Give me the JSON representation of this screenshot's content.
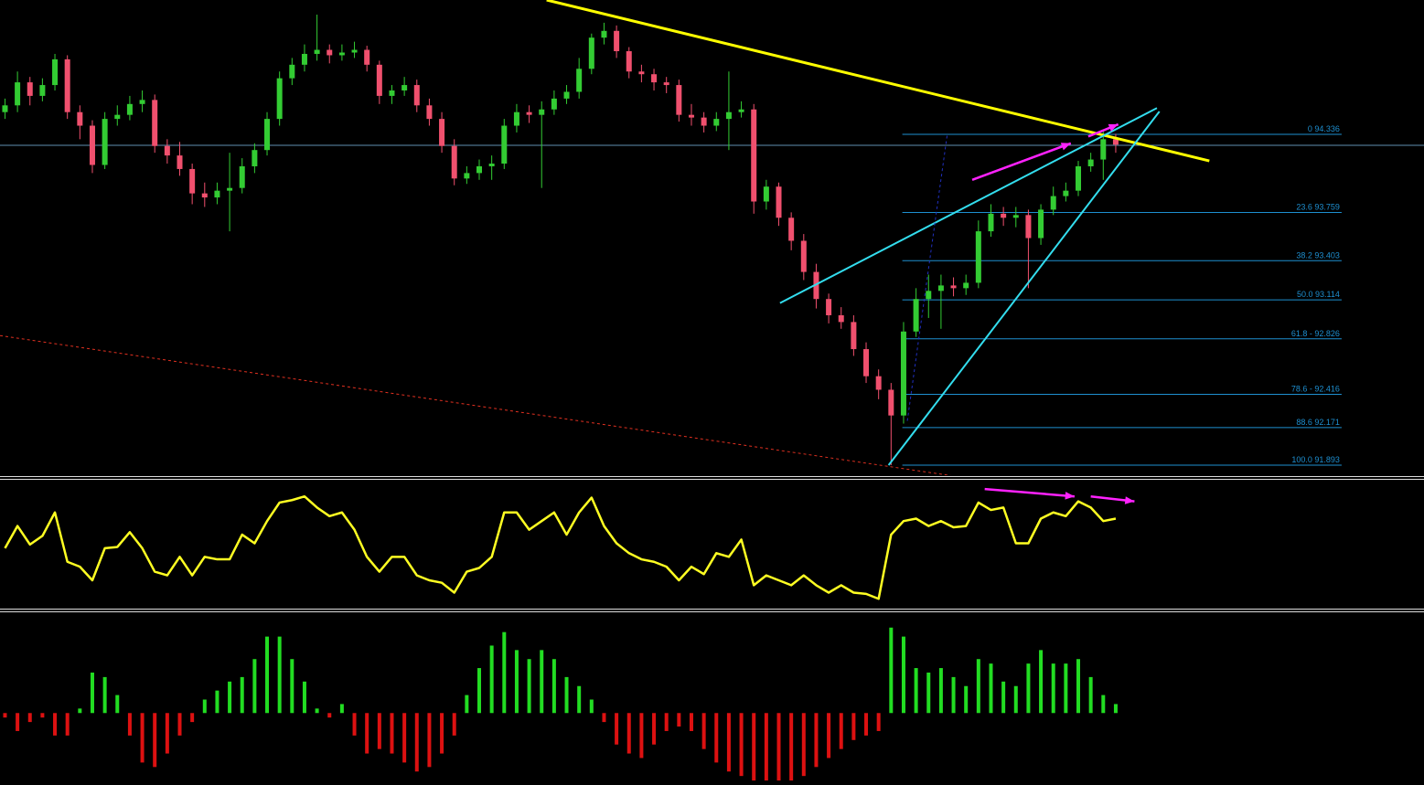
{
  "chart_data": [
    {
      "type": "candlestick",
      "xlim": [
        -0.4,
        113.7
      ],
      "ylim": [
        91.819,
        95.328
      ],
      "up_color": "#33cc33",
      "down_color": "#f0506e",
      "ohlc": [
        [
          94.5,
          94.6,
          94.45,
          94.55
        ],
        [
          94.55,
          94.8,
          94.5,
          94.72
        ],
        [
          94.72,
          94.76,
          94.55,
          94.62
        ],
        [
          94.62,
          94.75,
          94.58,
          94.7
        ],
        [
          94.7,
          94.93,
          94.66,
          94.89
        ],
        [
          94.89,
          94.92,
          94.45,
          94.5
        ],
        [
          94.5,
          94.55,
          94.3,
          94.4
        ],
        [
          94.4,
          94.44,
          94.05,
          94.11
        ],
        [
          94.11,
          94.5,
          94.08,
          94.45
        ],
        [
          94.45,
          94.55,
          94.4,
          94.48
        ],
        [
          94.48,
          94.62,
          94.44,
          94.56
        ],
        [
          94.56,
          94.66,
          94.5,
          94.59
        ],
        [
          94.59,
          94.63,
          94.2,
          94.25
        ],
        [
          94.25,
          94.3,
          94.12,
          94.18
        ],
        [
          94.18,
          94.28,
          94.03,
          94.08
        ],
        [
          94.08,
          94.12,
          93.82,
          93.9
        ],
        [
          93.9,
          93.98,
          93.8,
          93.87
        ],
        [
          93.87,
          93.98,
          93.82,
          93.92
        ],
        [
          93.92,
          94.2,
          93.62,
          93.94
        ],
        [
          93.94,
          94.16,
          93.9,
          94.1
        ],
        [
          94.1,
          94.27,
          94.05,
          94.22
        ],
        [
          94.22,
          94.5,
          94.18,
          94.45
        ],
        [
          94.45,
          94.8,
          94.4,
          94.75
        ],
        [
          94.75,
          94.9,
          94.7,
          94.85
        ],
        [
          94.85,
          95.0,
          94.8,
          94.93
        ],
        [
          94.93,
          95.22,
          94.88,
          94.96
        ],
        [
          94.96,
          95.0,
          94.86,
          94.92
        ],
        [
          94.92,
          95.0,
          94.88,
          94.94
        ],
        [
          94.94,
          95.02,
          94.9,
          94.96
        ],
        [
          94.96,
          94.99,
          94.8,
          94.85
        ],
        [
          94.85,
          94.88,
          94.56,
          94.62
        ],
        [
          94.62,
          94.7,
          94.56,
          94.66
        ],
        [
          94.66,
          94.76,
          94.62,
          94.7
        ],
        [
          94.7,
          94.74,
          94.5,
          94.55
        ],
        [
          94.55,
          94.6,
          94.4,
          94.45
        ],
        [
          94.45,
          94.5,
          94.2,
          94.25
        ],
        [
          94.25,
          94.3,
          93.96,
          94.01
        ],
        [
          94.01,
          94.1,
          93.97,
          94.05
        ],
        [
          94.05,
          94.15,
          94.0,
          94.1
        ],
        [
          94.1,
          94.18,
          94.0,
          94.12
        ],
        [
          94.12,
          94.45,
          94.08,
          94.4
        ],
        [
          94.4,
          94.56,
          94.35,
          94.5
        ],
        [
          94.5,
          94.55,
          94.42,
          94.48
        ],
        [
          94.48,
          94.58,
          93.94,
          94.52
        ],
        [
          94.52,
          94.66,
          94.48,
          94.6
        ],
        [
          94.6,
          94.7,
          94.56,
          94.65
        ],
        [
          94.65,
          94.9,
          94.6,
          94.82
        ],
        [
          94.82,
          95.08,
          94.78,
          95.05
        ],
        [
          95.05,
          95.16,
          95.0,
          95.1
        ],
        [
          95.1,
          95.14,
          94.9,
          94.95
        ],
        [
          94.95,
          94.98,
          94.75,
          94.8
        ],
        [
          94.8,
          94.85,
          94.72,
          94.78
        ],
        [
          94.78,
          94.82,
          94.66,
          94.72
        ],
        [
          94.72,
          94.76,
          94.64,
          94.7
        ],
        [
          94.7,
          94.74,
          94.43,
          94.48
        ],
        [
          94.48,
          94.56,
          94.4,
          94.46
        ],
        [
          94.46,
          94.5,
          94.35,
          94.4
        ],
        [
          94.4,
          94.5,
          94.36,
          94.45
        ],
        [
          94.45,
          94.8,
          94.22,
          94.5
        ],
        [
          94.5,
          94.58,
          94.46,
          94.52
        ],
        [
          94.52,
          94.56,
          93.75,
          93.84
        ],
        [
          93.84,
          94.0,
          93.78,
          93.95
        ],
        [
          93.95,
          93.98,
          93.66,
          93.72
        ],
        [
          93.72,
          93.76,
          93.48,
          93.55
        ],
        [
          93.55,
          93.6,
          93.26,
          93.32
        ],
        [
          93.32,
          93.38,
          93.05,
          93.12
        ],
        [
          93.12,
          93.16,
          92.94,
          93.0
        ],
        [
          93.0,
          93.06,
          92.9,
          92.95
        ],
        [
          92.95,
          93.0,
          92.7,
          92.75
        ],
        [
          92.75,
          92.8,
          92.5,
          92.55
        ],
        [
          92.55,
          92.6,
          92.38,
          92.45
        ],
        [
          92.45,
          92.5,
          91.893,
          92.26
        ],
        [
          92.26,
          92.95,
          92.2,
          92.88
        ],
        [
          92.88,
          93.2,
          92.84,
          93.12
        ],
        [
          93.12,
          93.3,
          92.98,
          93.18
        ],
        [
          93.18,
          93.3,
          92.9,
          93.22
        ],
        [
          93.22,
          93.28,
          93.14,
          93.2
        ],
        [
          93.2,
          93.3,
          93.15,
          93.24
        ],
        [
          93.24,
          93.7,
          93.2,
          93.62
        ],
        [
          93.62,
          93.82,
          93.58,
          93.75
        ],
        [
          93.75,
          93.8,
          93.66,
          93.72
        ],
        [
          93.72,
          93.8,
          93.65,
          93.74
        ],
        [
          93.74,
          93.78,
          93.2,
          93.57
        ],
        [
          93.57,
          93.82,
          93.52,
          93.78
        ],
        [
          93.78,
          93.95,
          93.74,
          93.88
        ],
        [
          93.88,
          93.98,
          93.84,
          93.92
        ],
        [
          93.92,
          94.14,
          93.88,
          94.1
        ],
        [
          94.1,
          94.2,
          94.06,
          94.15
        ],
        [
          94.15,
          94.36,
          94.0,
          94.3
        ],
        [
          94.3,
          94.34,
          94.2,
          94.26
        ]
      ],
      "price_line": 94.255,
      "price_line_color": "#5f8fb0",
      "fib_color": "#1e8fd0",
      "fib_range": [
        71.9,
        107.1
      ],
      "fib_levels": [
        {
          "value": 94.336,
          "label": "0 94.336"
        },
        {
          "value": 93.759,
          "label": "23.6 93.759"
        },
        {
          "value": 93.403,
          "label": "38.2 93.403"
        },
        {
          "value": 93.114,
          "label": "50.0 93.114"
        },
        {
          "value": 92.826,
          "label": "61.8 - 92.826"
        },
        {
          "value": 92.416,
          "label": "78.6 - 92.416"
        },
        {
          "value": 92.171,
          "label": "88.6 92.171"
        },
        {
          "value": 91.893,
          "label": "100.0 91.893"
        }
      ],
      "trendlines": [
        {
          "color": "#ffff00",
          "width": 3,
          "from": [
            43.4,
            95.328
          ],
          "to": [
            96.5,
            94.14
          ]
        },
        {
          "color": "#33ddee",
          "width": 2,
          "from": [
            62.1,
            93.09
          ],
          "to": [
            92.3,
            94.53
          ]
        },
        {
          "color": "#33ddee",
          "width": 2,
          "from": [
            70.8,
            91.893
          ],
          "to": [
            92.5,
            94.505
          ]
        },
        {
          "color": "#e03020",
          "width": 1,
          "dash": true,
          "from": [
            -0.4,
            92.85
          ],
          "to": [
            76.6,
            91.805
          ]
        },
        {
          "color": "#2030c0",
          "width": 1,
          "dash": true,
          "from": [
            72.3,
            92.22
          ],
          "to": [
            75.5,
            94.336
          ]
        }
      ],
      "arrows": [
        {
          "color": "#ff22ff",
          "from": [
            77.5,
            94.0
          ],
          "to": [
            85.4,
            94.27
          ]
        },
        {
          "color": "#ff22ff",
          "from": [
            86.8,
            94.32
          ],
          "to": [
            89.2,
            94.41
          ]
        }
      ]
    },
    {
      "type": "line",
      "xlim": [
        -0.4,
        113.7
      ],
      "ylim": [
        0,
        100
      ],
      "color": "#ffff22",
      "values": [
        46,
        64,
        49,
        56,
        75,
        35,
        31,
        20,
        46,
        47,
        59,
        46,
        27,
        24,
        39,
        24,
        39,
        37,
        37,
        57,
        50,
        68,
        83,
        85,
        88,
        79,
        72,
        75,
        61,
        39,
        27,
        39,
        39,
        24,
        20,
        18,
        10,
        27,
        30,
        39,
        75,
        75,
        61,
        68,
        75,
        57,
        75,
        87,
        64,
        50,
        42,
        37,
        35,
        31,
        20,
        31,
        25,
        42,
        39,
        53,
        16,
        24,
        20,
        16,
        24,
        16,
        10,
        16,
        10,
        9,
        5,
        57,
        68,
        70,
        64,
        68,
        63,
        64,
        83,
        77,
        79,
        50,
        50,
        70,
        75,
        72,
        84,
        79,
        68,
        70
      ],
      "arrows": [
        {
          "color": "#ff22ff",
          "from": [
            78.5,
            94
          ],
          "to": [
            85.7,
            88
          ]
        },
        {
          "color": "#ff22ff",
          "from": [
            87.0,
            88
          ],
          "to": [
            90.5,
            84
          ]
        }
      ]
    },
    {
      "type": "bar",
      "xlim": [
        -0.4,
        113.7
      ],
      "ylim": [
        -80,
        110
      ],
      "up_color": "#22dd22",
      "down_color": "#dd1111",
      "values": [
        -5,
        -20,
        -10,
        -5,
        -25,
        -25,
        5,
        45,
        40,
        20,
        -25,
        -55,
        -60,
        -45,
        -25,
        -10,
        15,
        25,
        35,
        40,
        60,
        85,
        85,
        60,
        35,
        5,
        -5,
        10,
        -25,
        -45,
        -40,
        -45,
        -55,
        -65,
        -60,
        -45,
        -25,
        20,
        50,
        75,
        90,
        70,
        60,
        70,
        60,
        40,
        30,
        15,
        -10,
        -35,
        -45,
        -50,
        -35,
        -20,
        -15,
        -20,
        -40,
        -55,
        -65,
        -70,
        -75,
        -75,
        -75,
        -75,
        -70,
        -60,
        -50,
        -40,
        -30,
        -25,
        -20,
        95,
        85,
        50,
        45,
        50,
        40,
        30,
        60,
        55,
        35,
        30,
        55,
        70,
        55,
        55,
        60,
        40,
        20,
        10
      ]
    }
  ]
}
